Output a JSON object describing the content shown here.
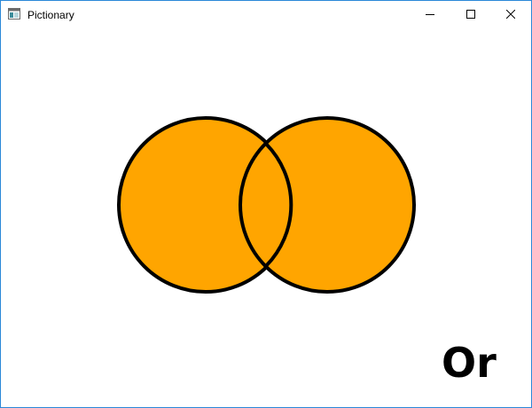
{
  "window": {
    "title": "Pictionary",
    "icon": "app-window-icon",
    "controls": {
      "minimize_icon": "minimize-icon",
      "maximize_icon": "maximize-icon",
      "close_icon": "close-icon"
    }
  },
  "drawing": {
    "shapes": [
      {
        "kind": "circle",
        "label": "left-circle",
        "fill": "#FFA500",
        "stroke": "#000000"
      },
      {
        "kind": "circle",
        "label": "right-circle",
        "fill": "#FFA500",
        "stroke": "#000000"
      }
    ],
    "answer": "Or"
  },
  "colors": {
    "fill": "#FFA500",
    "stroke": "#000000",
    "window_border": "#2B88D8"
  }
}
